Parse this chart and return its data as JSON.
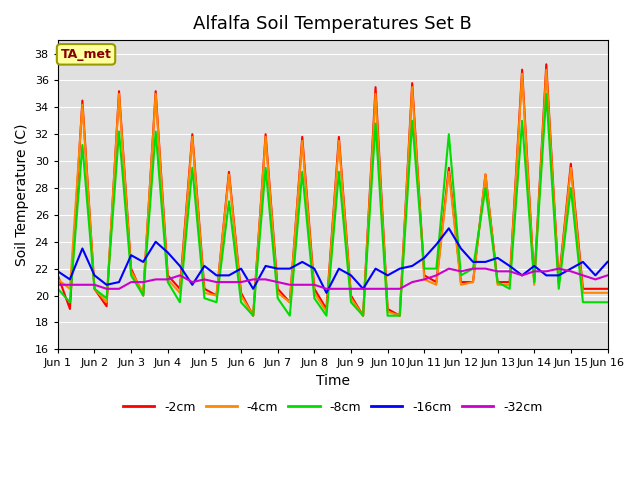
{
  "title": "Alfalfa Soil Temperatures Set B",
  "xlabel": "Time",
  "ylabel": "Soil Temperature (C)",
  "ylim": [
    16,
    39
  ],
  "xlim": [
    0,
    15
  ],
  "yticks": [
    16,
    18,
    20,
    22,
    24,
    26,
    28,
    30,
    32,
    34,
    36,
    38
  ],
  "xtick_labels": [
    "Jun 1",
    "Jun 2",
    "Jun 3",
    "Jun 4",
    "Jun 5",
    "Jun 6",
    "Jun 7",
    "Jun 8",
    "Jun 9",
    "Jun 10",
    "Jun 11",
    "Jun 12",
    "Jun 13",
    "Jun 14",
    "Jun 15",
    "Jun 16"
  ],
  "series_colors": [
    "#ff0000",
    "#ff8800",
    "#00dd00",
    "#0000ff",
    "#cc00cc"
  ],
  "series_labels": [
    "-2cm",
    "-4cm",
    "-8cm",
    "-16cm",
    "-32cm"
  ],
  "background_color": "#e0e0e0",
  "annotation_text": "TA_met",
  "annotation_bg": "#ffffa0",
  "annotation_border": "#999900",
  "annotation_text_color": "#880000",
  "x_pts": [
    0.0,
    0.33,
    0.67,
    1.0,
    1.33,
    1.67,
    2.0,
    2.33,
    2.67,
    3.0,
    3.33,
    3.67,
    4.0,
    4.33,
    4.67,
    5.0,
    5.33,
    5.67,
    6.0,
    6.33,
    6.67,
    7.0,
    7.33,
    7.67,
    8.0,
    8.33,
    8.67,
    9.0,
    9.33,
    9.67,
    10.0,
    10.33,
    10.67,
    11.0,
    11.33,
    11.67,
    12.0,
    12.33,
    12.67,
    13.0,
    13.33,
    13.67,
    14.0,
    14.33,
    14.67,
    15.0
  ],
  "data_2cm": [
    21.5,
    19.0,
    34.5,
    20.5,
    19.2,
    35.2,
    22.0,
    20.0,
    35.2,
    21.5,
    20.5,
    32.0,
    20.5,
    20.0,
    29.2,
    20.2,
    18.5,
    32.0,
    20.5,
    19.5,
    31.8,
    20.5,
    19.0,
    31.8,
    20.0,
    18.5,
    35.5,
    19.0,
    18.5,
    35.8,
    21.5,
    21.0,
    29.5,
    21.0,
    21.0,
    29.0,
    21.0,
    21.0,
    36.8,
    21.0,
    37.2,
    21.0,
    29.8,
    20.5,
    20.5,
    20.5
  ],
  "data_4cm": [
    21.2,
    20.5,
    34.2,
    20.5,
    19.5,
    35.0,
    21.8,
    20.2,
    35.0,
    21.2,
    20.2,
    31.8,
    20.2,
    20.0,
    29.0,
    20.0,
    18.5,
    31.8,
    20.2,
    19.5,
    31.5,
    20.2,
    18.8,
    31.5,
    19.8,
    18.5,
    35.0,
    18.8,
    18.5,
    35.5,
    21.2,
    20.8,
    29.2,
    20.8,
    21.0,
    29.0,
    20.8,
    20.8,
    36.5,
    20.8,
    36.8,
    20.8,
    29.5,
    20.2,
    20.2,
    20.2
  ],
  "data_8cm": [
    20.5,
    19.5,
    31.2,
    20.5,
    19.8,
    32.2,
    21.5,
    20.0,
    32.2,
    21.0,
    19.5,
    29.5,
    19.8,
    19.5,
    27.0,
    19.5,
    18.5,
    29.5,
    19.8,
    18.5,
    29.2,
    19.8,
    18.5,
    29.2,
    19.5,
    18.5,
    32.8,
    18.5,
    18.5,
    33.0,
    22.0,
    22.0,
    32.0,
    21.5,
    22.0,
    28.0,
    21.0,
    20.5,
    33.0,
    21.0,
    35.0,
    20.5,
    28.0,
    19.5,
    19.5,
    19.5
  ],
  "data_16cm": [
    21.8,
    21.2,
    23.5,
    21.5,
    20.8,
    21.0,
    23.0,
    22.5,
    24.0,
    23.2,
    22.2,
    20.8,
    22.2,
    21.5,
    21.5,
    22.0,
    20.5,
    22.2,
    22.0,
    22.0,
    22.5,
    22.0,
    20.2,
    22.0,
    21.5,
    20.5,
    22.0,
    21.5,
    22.0,
    22.2,
    22.8,
    23.8,
    25.0,
    23.5,
    22.5,
    22.5,
    22.8,
    22.2,
    21.5,
    22.2,
    21.5,
    21.5,
    22.0,
    22.5,
    21.5,
    22.5
  ],
  "data_32cm": [
    20.8,
    20.8,
    20.8,
    20.8,
    20.5,
    20.5,
    21.0,
    21.0,
    21.2,
    21.2,
    21.5,
    21.0,
    21.2,
    21.0,
    21.0,
    21.0,
    21.2,
    21.2,
    21.0,
    20.8,
    20.8,
    20.8,
    20.5,
    20.5,
    20.5,
    20.5,
    20.5,
    20.5,
    20.5,
    21.0,
    21.2,
    21.5,
    22.0,
    21.8,
    22.0,
    22.0,
    21.8,
    21.8,
    21.5,
    21.8,
    21.8,
    22.0,
    21.8,
    21.5,
    21.2,
    21.5
  ]
}
